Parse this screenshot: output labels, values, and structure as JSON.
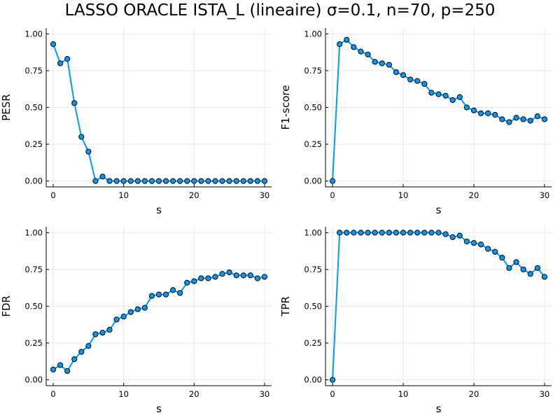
{
  "title": "LASSO ORACLE ISTA_L (lineaire) σ=0.1, n=70, p=250",
  "colors": {
    "series": "#009AFA",
    "marker_edge": "#000000",
    "grid": "#E6E6E6",
    "axis": "#000000"
  },
  "chart_data": [
    {
      "type": "line",
      "xlabel": "s",
      "ylabel": "PESR",
      "xlim": [
        -1,
        31
      ],
      "ylim": [
        -0.04,
        1.04
      ],
      "xticks": [
        0,
        10,
        20,
        30
      ],
      "xtick_labels": [
        "0",
        "10",
        "20",
        "30"
      ],
      "yticks": [
        0,
        0.25,
        0.5,
        0.75,
        1.0
      ],
      "ytick_labels": [
        "0.00",
        "0.25",
        "0.50",
        "0.75",
        "1.00"
      ],
      "grid": true,
      "x": [
        0,
        1,
        2,
        3,
        4,
        5,
        6,
        7,
        8,
        9,
        10,
        11,
        12,
        13,
        14,
        15,
        16,
        17,
        18,
        19,
        20,
        21,
        22,
        23,
        24,
        25,
        26,
        27,
        28,
        29,
        30
      ],
      "values": [
        0.93,
        0.8,
        0.83,
        0.53,
        0.3,
        0.2,
        0.0,
        0.03,
        0,
        0,
        0,
        0,
        0,
        0,
        0,
        0,
        0,
        0,
        0,
        0,
        0,
        0,
        0,
        0,
        0,
        0,
        0,
        0,
        0,
        0,
        0
      ]
    },
    {
      "type": "line",
      "xlabel": "s",
      "ylabel": "F1-score",
      "xlim": [
        -1,
        31
      ],
      "ylim": [
        -0.04,
        1.04
      ],
      "xticks": [
        0,
        10,
        20,
        30
      ],
      "xtick_labels": [
        "0",
        "10",
        "20",
        "30"
      ],
      "yticks": [
        0,
        0.25,
        0.5,
        0.75,
        1.0
      ],
      "ytick_labels": [
        "0.00",
        "0.25",
        "0.50",
        "0.75",
        "1.00"
      ],
      "grid": true,
      "x": [
        0,
        1,
        2,
        3,
        4,
        5,
        6,
        7,
        8,
        9,
        10,
        11,
        12,
        13,
        14,
        15,
        16,
        17,
        18,
        19,
        20,
        21,
        22,
        23,
        24,
        25,
        26,
        27,
        28,
        29,
        30
      ],
      "values": [
        0.0,
        0.93,
        0.96,
        0.91,
        0.88,
        0.86,
        0.81,
        0.8,
        0.79,
        0.74,
        0.72,
        0.69,
        0.68,
        0.66,
        0.6,
        0.59,
        0.58,
        0.55,
        0.57,
        0.5,
        0.48,
        0.46,
        0.46,
        0.45,
        0.42,
        0.4,
        0.43,
        0.42,
        0.41,
        0.44,
        0.42
      ]
    },
    {
      "type": "line",
      "xlabel": "s",
      "ylabel": "FDR",
      "xlim": [
        -1,
        31
      ],
      "ylim": [
        -0.04,
        1.04
      ],
      "xticks": [
        0,
        10,
        20,
        30
      ],
      "xtick_labels": [
        "0",
        "10",
        "20",
        "30"
      ],
      "yticks": [
        0,
        0.25,
        0.5,
        0.75,
        1.0
      ],
      "ytick_labels": [
        "0.00",
        "0.25",
        "0.50",
        "0.75",
        "1.00"
      ],
      "grid": true,
      "x": [
        0,
        1,
        2,
        3,
        4,
        5,
        6,
        7,
        8,
        9,
        10,
        11,
        12,
        13,
        14,
        15,
        16,
        17,
        18,
        19,
        20,
        21,
        22,
        23,
        24,
        25,
        26,
        27,
        28,
        29,
        30
      ],
      "values": [
        0.07,
        0.1,
        0.06,
        0.14,
        0.19,
        0.23,
        0.31,
        0.32,
        0.34,
        0.41,
        0.43,
        0.46,
        0.48,
        0.49,
        0.57,
        0.58,
        0.58,
        0.61,
        0.59,
        0.66,
        0.67,
        0.69,
        0.69,
        0.7,
        0.72,
        0.73,
        0.71,
        0.71,
        0.71,
        0.69,
        0.7
      ]
    },
    {
      "type": "line",
      "xlabel": "s",
      "ylabel": "TPR",
      "xlim": [
        -1,
        31
      ],
      "ylim": [
        -0.04,
        1.04
      ],
      "xticks": [
        0,
        10,
        20,
        30
      ],
      "xtick_labels": [
        "0",
        "10",
        "20",
        "30"
      ],
      "yticks": [
        0,
        0.25,
        0.5,
        0.75,
        1.0
      ],
      "ytick_labels": [
        "0.00",
        "0.25",
        "0.50",
        "0.75",
        "1.00"
      ],
      "grid": true,
      "x": [
        0,
        1,
        2,
        3,
        4,
        5,
        6,
        7,
        8,
        9,
        10,
        11,
        12,
        13,
        14,
        15,
        16,
        17,
        18,
        19,
        20,
        21,
        22,
        23,
        24,
        25,
        26,
        27,
        28,
        29,
        30
      ],
      "values": [
        0.0,
        1.0,
        1.0,
        1.0,
        1.0,
        1.0,
        1.0,
        1.0,
        1.0,
        1.0,
        1.0,
        1.0,
        1.0,
        1.0,
        1.0,
        1.0,
        0.99,
        0.97,
        0.98,
        0.94,
        0.93,
        0.92,
        0.89,
        0.87,
        0.83,
        0.76,
        0.8,
        0.75,
        0.72,
        0.76,
        0.7
      ]
    }
  ]
}
